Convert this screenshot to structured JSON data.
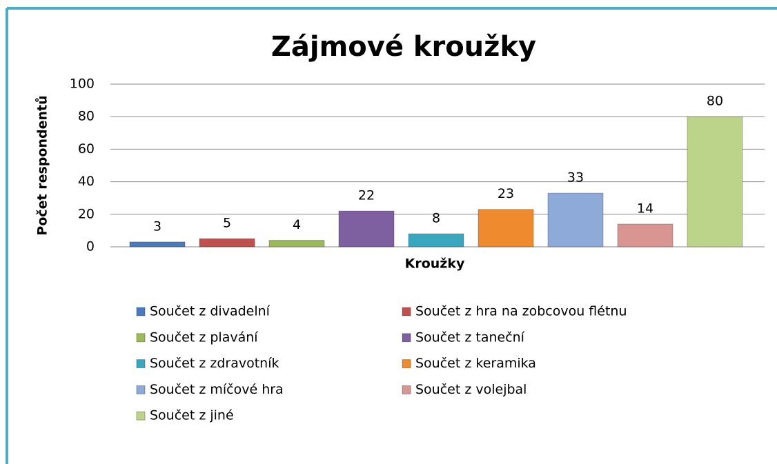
{
  "chart_data": {
    "type": "bar",
    "title": "Zájmové kroužky",
    "x_label": "Kroužky",
    "y_label": "Počet respondentů",
    "series": [
      {
        "name": "Součet z divadelní",
        "color": "#4a7bc0",
        "values": [
          3
        ]
      },
      {
        "name": "Součet z hra na zobcovou flétnu",
        "color": "#c0504d",
        "values": [
          5
        ]
      },
      {
        "name": "Součet z plavání",
        "color": "#9bbb59",
        "values": [
          4
        ]
      },
      {
        "name": "Součet z taneční",
        "color": "#7e5fa0",
        "values": [
          22
        ]
      },
      {
        "name": "Součet z zdravotník",
        "color": "#3aa7c0",
        "values": [
          8
        ]
      },
      {
        "name": "Součet z keramika",
        "color": "#ef8a2e",
        "values": [
          23
        ]
      },
      {
        "name": "Součet z míčové hra",
        "color": "#8eaad8",
        "values": [
          33
        ]
      },
      {
        "name": "Součet z volejbal",
        "color": "#d89592",
        "values": [
          14
        ]
      },
      {
        "name": "Součet z jiné",
        "color": "#bcd48a",
        "values": [
          80
        ]
      }
    ],
    "ylim": [
      0,
      100
    ],
    "yticks": [
      0,
      20,
      40,
      60,
      80,
      100
    ],
    "grid": true,
    "legend": "bottom"
  }
}
